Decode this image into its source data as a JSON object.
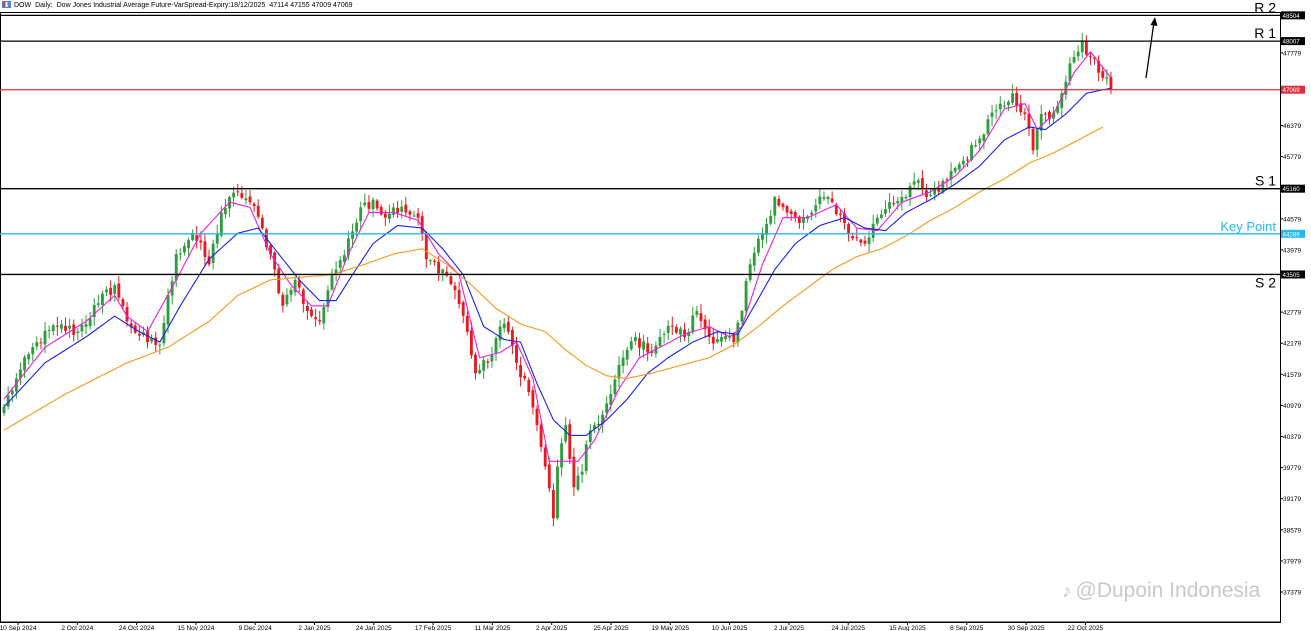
{
  "header": {
    "symbol": "DOW",
    "timeframe": "Daily:",
    "description": "Dow Jones Industrial Average Future-VarSpread-Expiry:18/12/2025",
    "ohlc": "47114 47155 47009 47069"
  },
  "watermark": {
    "icon": "tiktok-icon",
    "text": "@Dupoin Indonesia"
  },
  "colors": {
    "bull": "#2e9e3c",
    "bear": "#e8191f",
    "ma_fast": "#e81fe0",
    "ma_mid": "#1a23e6",
    "ma_slow": "#f39a1b",
    "support_resistance": "#000000",
    "key_point": "#23b9ec",
    "current_price": "#e0303b"
  },
  "chart_data": {
    "type": "candlestick",
    "title": "",
    "ylim": [
      36800,
      48800
    ],
    "y_ticks": [
      {
        "value": 48007,
        "label": "48007"
      },
      {
        "value": 47779,
        "label": "47779"
      },
      {
        "value": 47069,
        "label": "47069"
      },
      {
        "value": 46379,
        "label": "46379"
      },
      {
        "value": 45779,
        "label": "45779"
      },
      {
        "value": 45160,
        "label": "45160"
      },
      {
        "value": 44579,
        "label": "44579"
      },
      {
        "value": 44289,
        "label": "44289"
      },
      {
        "value": 43979,
        "label": "43979"
      },
      {
        "value": 43505,
        "label": "43505"
      },
      {
        "value": 42779,
        "label": "42779"
      },
      {
        "value": 42179,
        "label": "42179"
      },
      {
        "value": 41579,
        "label": "41579"
      },
      {
        "value": 40979,
        "label": "40979"
      },
      {
        "value": 40379,
        "label": "40379"
      },
      {
        "value": 39779,
        "label": "39779"
      },
      {
        "value": 39179,
        "label": "39179"
      },
      {
        "value": 38579,
        "label": "38579"
      },
      {
        "value": 37979,
        "label": "37979"
      },
      {
        "value": 37379,
        "label": "37379"
      }
    ],
    "x_ticks": [
      "10 Sep 2024",
      "2 Oct 2024",
      "24 Oct 2024",
      "15 Nov 2024",
      "9 Dec 2024",
      "2 Jan 2025",
      "24 Jan 2025",
      "17 Feb 2025",
      "11 Mar 2025",
      "2 Apr 2025",
      "25 Apr 2025",
      "19 May 2025",
      "10 Jun 2025",
      "2 Jul 2025",
      "24 Jul 2025",
      "15 Aug 2025",
      "8 Sep 2025",
      "30 Sep 2025",
      "22 Oct 2025"
    ],
    "levels": [
      {
        "name": "R 2",
        "value": 48504,
        "label": "48504",
        "color": "#000000"
      },
      {
        "name": "R 1",
        "value": 48007,
        "label": "48007",
        "color": "#000000"
      },
      {
        "name": "",
        "value": 47069,
        "label": "47069",
        "color": "#e0303b"
      },
      {
        "name": "S 1",
        "value": 45160,
        "label": "45160",
        "color": "#000000"
      },
      {
        "name": "Key Point",
        "value": 44289,
        "label": "44289",
        "color": "#23b9ec"
      },
      {
        "name": "S 2",
        "value": 43505,
        "label": "43505",
        "color": "#000000"
      }
    ],
    "close_anchors": [
      [
        0,
        40950
      ],
      [
        3,
        41500
      ],
      [
        8,
        42200
      ],
      [
        13,
        42500
      ],
      [
        18,
        42400
      ],
      [
        23,
        42950
      ],
      [
        27,
        43300
      ],
      [
        30,
        42600
      ],
      [
        35,
        42200
      ],
      [
        38,
        42150
      ],
      [
        42,
        43900
      ],
      [
        46,
        44300
      ],
      [
        50,
        43700
      ],
      [
        53,
        44700
      ],
      [
        57,
        45100
      ],
      [
        60,
        44900
      ],
      [
        63,
        44400
      ],
      [
        66,
        43600
      ],
      [
        68,
        42900
      ],
      [
        71,
        43400
      ],
      [
        74,
        42800
      ],
      [
        77,
        42600
      ],
      [
        79,
        43200
      ],
      [
        81,
        43600
      ],
      [
        84,
        44200
      ],
      [
        87,
        44800
      ],
      [
        90,
        44950
      ],
      [
        93,
        44600
      ],
      [
        95,
        44800
      ],
      [
        98,
        44700
      ],
      [
        101,
        44600
      ],
      [
        103,
        43800
      ],
      [
        107,
        43600
      ],
      [
        110,
        43200
      ],
      [
        113,
        42400
      ],
      [
        115,
        41600
      ],
      [
        118,
        41800
      ],
      [
        121,
        42500
      ],
      [
        123,
        42400
      ],
      [
        125,
        41800
      ],
      [
        127,
        41500
      ],
      [
        130,
        40600
      ],
      [
        132,
        39800
      ],
      [
        134,
        38800
      ],
      [
        135,
        39800
      ],
      [
        137,
        40600
      ],
      [
        139,
        39400
      ],
      [
        141,
        39700
      ],
      [
        143,
        40500
      ],
      [
        146,
        40800
      ],
      [
        148,
        41200
      ],
      [
        151,
        41900
      ],
      [
        154,
        42300
      ],
      [
        157,
        42000
      ],
      [
        160,
        42300
      ],
      [
        163,
        42500
      ],
      [
        166,
        42300
      ],
      [
        169,
        42800
      ],
      [
        172,
        42300
      ],
      [
        175,
        42300
      ],
      [
        178,
        42200
      ],
      [
        180,
        42800
      ],
      [
        182,
        43700
      ],
      [
        185,
        44300
      ],
      [
        188,
        45000
      ],
      [
        191,
        44700
      ],
      [
        194,
        44500
      ],
      [
        197,
        44700
      ],
      [
        200,
        45000
      ],
      [
        202,
        44900
      ],
      [
        205,
        44500
      ],
      [
        207,
        44200
      ],
      [
        210,
        44100
      ],
      [
        213,
        44600
      ],
      [
        216,
        44900
      ],
      [
        219,
        45000
      ],
      [
        222,
        45300
      ],
      [
        225,
        45000
      ],
      [
        228,
        45100
      ],
      [
        231,
        45500
      ],
      [
        234,
        45700
      ],
      [
        237,
        46000
      ],
      [
        240,
        46500
      ],
      [
        243,
        46800
      ],
      [
        246,
        47000
      ],
      [
        249,
        46600
      ],
      [
        251,
        45900
      ],
      [
        253,
        46600
      ],
      [
        255,
        46500
      ],
      [
        258,
        47000
      ],
      [
        261,
        47700
      ],
      [
        263,
        48000
      ],
      [
        265,
        47700
      ],
      [
        268,
        47300
      ],
      [
        270,
        47069
      ]
    ],
    "series": [
      {
        "name": "",
        "kind": "moving-average",
        "color": "#e81fe0",
        "values": [
          [
            0,
            41100
          ],
          [
            10,
            42100
          ],
          [
            20,
            42600
          ],
          [
            27,
            43100
          ],
          [
            30,
            42700
          ],
          [
            35,
            42400
          ],
          [
            42,
            43400
          ],
          [
            48,
            44300
          ],
          [
            55,
            44900
          ],
          [
            60,
            44800
          ],
          [
            65,
            43900
          ],
          [
            70,
            43300
          ],
          [
            75,
            42900
          ],
          [
            79,
            42900
          ],
          [
            84,
            43900
          ],
          [
            89,
            44700
          ],
          [
            95,
            44700
          ],
          [
            101,
            44550
          ],
          [
            106,
            43900
          ],
          [
            111,
            43500
          ],
          [
            116,
            41900
          ],
          [
            121,
            42000
          ],
          [
            125,
            42200
          ],
          [
            129,
            41500
          ],
          [
            133,
            39900
          ],
          [
            137,
            39900
          ],
          [
            140,
            39900
          ],
          [
            144,
            40300
          ],
          [
            150,
            41300
          ],
          [
            155,
            41900
          ],
          [
            160,
            42100
          ],
          [
            166,
            42350
          ],
          [
            172,
            42500
          ],
          [
            177,
            42300
          ],
          [
            180,
            42500
          ],
          [
            185,
            43700
          ],
          [
            190,
            44600
          ],
          [
            196,
            44600
          ],
          [
            203,
            44850
          ],
          [
            208,
            44400
          ],
          [
            213,
            44350
          ],
          [
            219,
            44900
          ],
          [
            226,
            45100
          ],
          [
            232,
            45400
          ],
          [
            238,
            45900
          ],
          [
            244,
            46700
          ],
          [
            249,
            46800
          ],
          [
            252,
            46300
          ],
          [
            256,
            46600
          ],
          [
            261,
            47400
          ],
          [
            265,
            47800
          ],
          [
            270,
            47300
          ]
        ]
      },
      {
        "name": "",
        "kind": "moving-average",
        "color": "#1a23e6",
        "values": [
          [
            0,
            40950
          ],
          [
            10,
            41800
          ],
          [
            20,
            42300
          ],
          [
            27,
            42700
          ],
          [
            33,
            42400
          ],
          [
            38,
            42200
          ],
          [
            43,
            42900
          ],
          [
            50,
            43800
          ],
          [
            57,
            44300
          ],
          [
            62,
            44400
          ],
          [
            67,
            43900
          ],
          [
            72,
            43400
          ],
          [
            77,
            43000
          ],
          [
            81,
            43000
          ],
          [
            85,
            43500
          ],
          [
            90,
            44100
          ],
          [
            96,
            44450
          ],
          [
            102,
            44400
          ],
          [
            107,
            44000
          ],
          [
            112,
            43500
          ],
          [
            117,
            42500
          ],
          [
            122,
            42250
          ],
          [
            126,
            42200
          ],
          [
            130,
            41400
          ],
          [
            134,
            40700
          ],
          [
            138,
            40400
          ],
          [
            142,
            40400
          ],
          [
            147,
            40700
          ],
          [
            152,
            41100
          ],
          [
            157,
            41600
          ],
          [
            162,
            41900
          ],
          [
            168,
            42200
          ],
          [
            174,
            42400
          ],
          [
            179,
            42350
          ],
          [
            183,
            42900
          ],
          [
            188,
            43600
          ],
          [
            193,
            44100
          ],
          [
            199,
            44450
          ],
          [
            205,
            44600
          ],
          [
            210,
            44400
          ],
          [
            215,
            44350
          ],
          [
            220,
            44700
          ],
          [
            226,
            44950
          ],
          [
            232,
            45250
          ],
          [
            238,
            45600
          ],
          [
            244,
            46100
          ],
          [
            250,
            46350
          ],
          [
            254,
            46300
          ],
          [
            259,
            46600
          ],
          [
            264,
            47000
          ],
          [
            270,
            47100
          ]
        ]
      },
      {
        "name": "",
        "kind": "moving-average",
        "color": "#f39a1b",
        "values": [
          [
            0,
            40500
          ],
          [
            15,
            41200
          ],
          [
            30,
            41800
          ],
          [
            40,
            42100
          ],
          [
            50,
            42600
          ],
          [
            57,
            43100
          ],
          [
            65,
            43400
          ],
          [
            72,
            43450
          ],
          [
            80,
            43500
          ],
          [
            88,
            43700
          ],
          [
            95,
            43900
          ],
          [
            102,
            44000
          ],
          [
            108,
            43700
          ],
          [
            114,
            43300
          ],
          [
            120,
            42850
          ],
          [
            126,
            42550
          ],
          [
            132,
            42400
          ],
          [
            137,
            42050
          ],
          [
            142,
            41750
          ],
          [
            147,
            41550
          ],
          [
            152,
            41500
          ],
          [
            158,
            41600
          ],
          [
            165,
            41750
          ],
          [
            172,
            41900
          ],
          [
            178,
            42150
          ],
          [
            184,
            42500
          ],
          [
            190,
            42900
          ],
          [
            196,
            43250
          ],
          [
            202,
            43600
          ],
          [
            208,
            43850
          ],
          [
            214,
            44000
          ],
          [
            220,
            44250
          ],
          [
            226,
            44550
          ],
          [
            232,
            44800
          ],
          [
            238,
            45100
          ],
          [
            244,
            45350
          ],
          [
            250,
            45650
          ],
          [
            256,
            45850
          ],
          [
            262,
            46100
          ],
          [
            268,
            46350
          ]
        ]
      }
    ],
    "annotation": {
      "kind": "arrow",
      "direction": "up"
    }
  }
}
